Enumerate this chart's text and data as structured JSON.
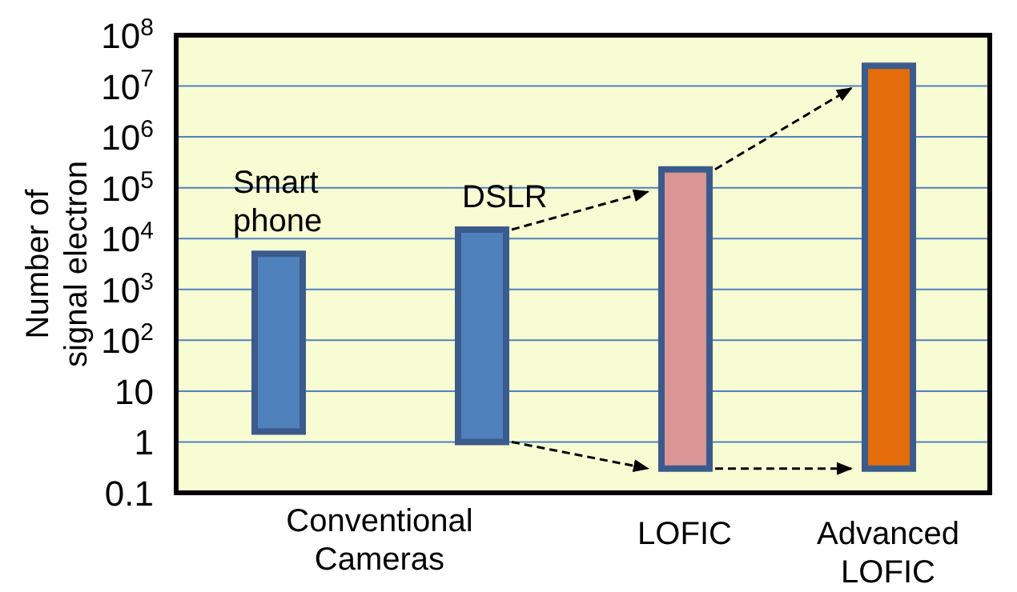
{
  "chart_data": {
    "type": "bar",
    "ylabel": "Number of signal electron",
    "categories": [
      null,
      null,
      "LOFIC",
      "Advanced LOFIC"
    ],
    "base": [
      1.6,
      1,
      0.3,
      0.3
    ],
    "values": [
      5000,
      15000,
      230000,
      25000000
    ],
    "colors": [
      "#4f81bd",
      "#4f81bd",
      "#d99694",
      "#e46c0a"
    ],
    "log": true,
    "ylim": [
      0.1,
      100000000
    ],
    "yticks": [
      {
        "value": 0.1,
        "label": "0.1"
      },
      1,
      10,
      {
        "value": 100,
        "label": "10$^{2}$"
      },
      {
        "value": 1000,
        "label": "10$^{3}$"
      },
      {
        "value": 10000,
        "label": "10$^{4}$"
      },
      {
        "value": 100000,
        "label": "10$^{5}$"
      },
      {
        "value": 1000000,
        "label": "10$^{6}$"
      },
      {
        "value": 10000000,
        "label": "10$^{7}$"
      },
      {
        "value": 100000000,
        "label": "10$^{8}$"
      }
    ],
    "grid": "y",
    "annotations": [
      "Smart phone",
      "DSLR",
      "Conventional Cameras"
    ]
  }
}
